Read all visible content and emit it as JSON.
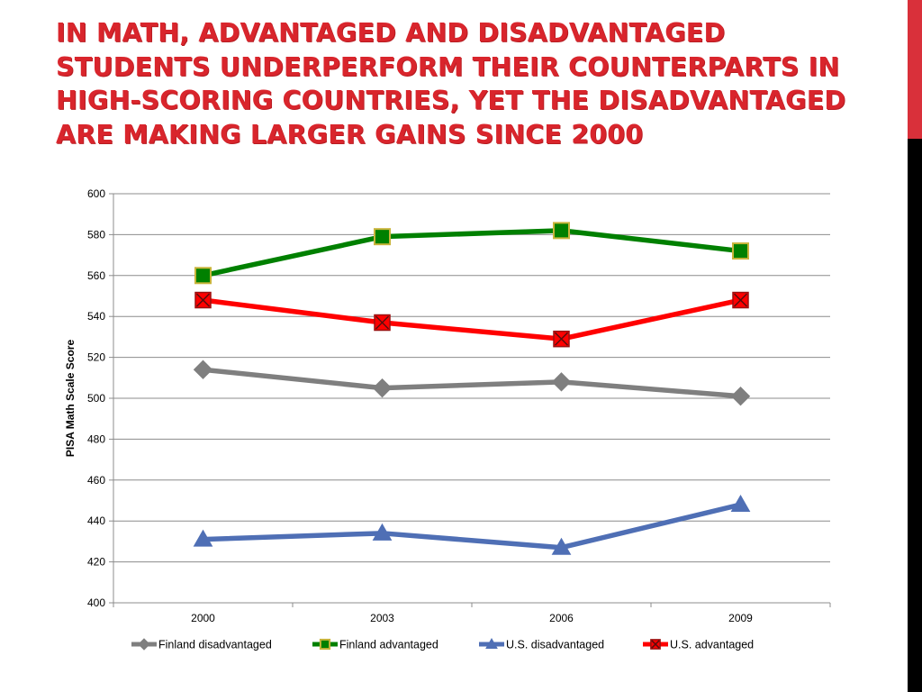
{
  "slide": {
    "title": "In Math, advantaged and disadvantaged students underperform their counterparts in high-scoring countries, yet the disadvantaged are making larger gains since 2000"
  },
  "chart_data": {
    "type": "line",
    "title": "",
    "xlabel": "",
    "ylabel": "PISA Math Scale Score",
    "categories": [
      "2000",
      "2003",
      "2006",
      "2009"
    ],
    "ylim": [
      400,
      600
    ],
    "yticks": [
      400,
      420,
      440,
      460,
      480,
      500,
      520,
      540,
      560,
      580,
      600
    ],
    "grid": true,
    "legend_position": "bottom",
    "series": [
      {
        "name": "Finland disadvantaged",
        "values": [
          514,
          505,
          508,
          501
        ],
        "color": "#7f7f7f",
        "marker": "diamond"
      },
      {
        "name": "Finland advantaged",
        "values": [
          560,
          579,
          582,
          572
        ],
        "color": "#008000",
        "marker": "square"
      },
      {
        "name": "U.S. disadvantaged",
        "values": [
          431,
          434,
          427,
          448
        ],
        "color": "#4f6fb5",
        "marker": "triangle"
      },
      {
        "name": "U.S. advantaged",
        "values": [
          548,
          537,
          529,
          548
        ],
        "color": "#ff0000",
        "marker": "x-square"
      }
    ]
  }
}
